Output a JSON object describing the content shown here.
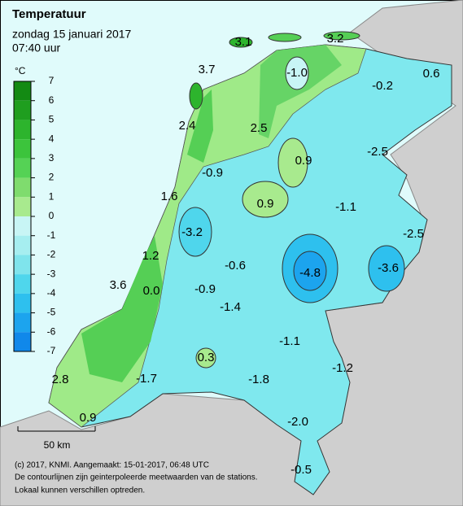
{
  "header": {
    "title": "Temperatuur",
    "date": "zondag 15 januari 2017",
    "time": "07:40 uur"
  },
  "legend": {
    "unit": "°C",
    "ticks": [
      7,
      6,
      5,
      4,
      3,
      2,
      1,
      0,
      -1,
      -2,
      -3,
      -4,
      -5,
      -6,
      -7
    ],
    "colors": [
      "#138a13",
      "#1f9e1f",
      "#2db42d",
      "#3cc43c",
      "#55d255",
      "#7fdc6e",
      "#a8ea8e",
      "#c8f5f5",
      "#a6eef0",
      "#7fe4ec",
      "#4fd6ec",
      "#2ec0ee",
      "#1ca4ee",
      "#1088ea"
    ]
  },
  "stations": [
    "3.1",
    "3.2",
    "3.7",
    "-1.0",
    "-0.2",
    "0.6",
    "2.4",
    "2.5",
    "0.9",
    "-2.5",
    "-0.9",
    "1.6",
    "0.9",
    "-1.1",
    "-2.5",
    "-3.2",
    "1.2",
    "-4.8",
    "-3.6",
    "-0.6",
    "3.6",
    "0.0",
    "-0.9",
    "-1.4",
    "-1.1",
    "-1.2",
    "0.3",
    "-1.7",
    "-1.8",
    "2.8",
    "0.9",
    "-2.0",
    "-0.5"
  ],
  "scale": "50 km",
  "footer": [
    "(c) 2017, KNMI. Aangemaakt: 15-01-2017, 06:48 UTC",
    "De contourlijnen zijn geinterpoleerde meetwaarden van de stations.",
    "Lokaal kunnen verschillen optreden."
  ]
}
